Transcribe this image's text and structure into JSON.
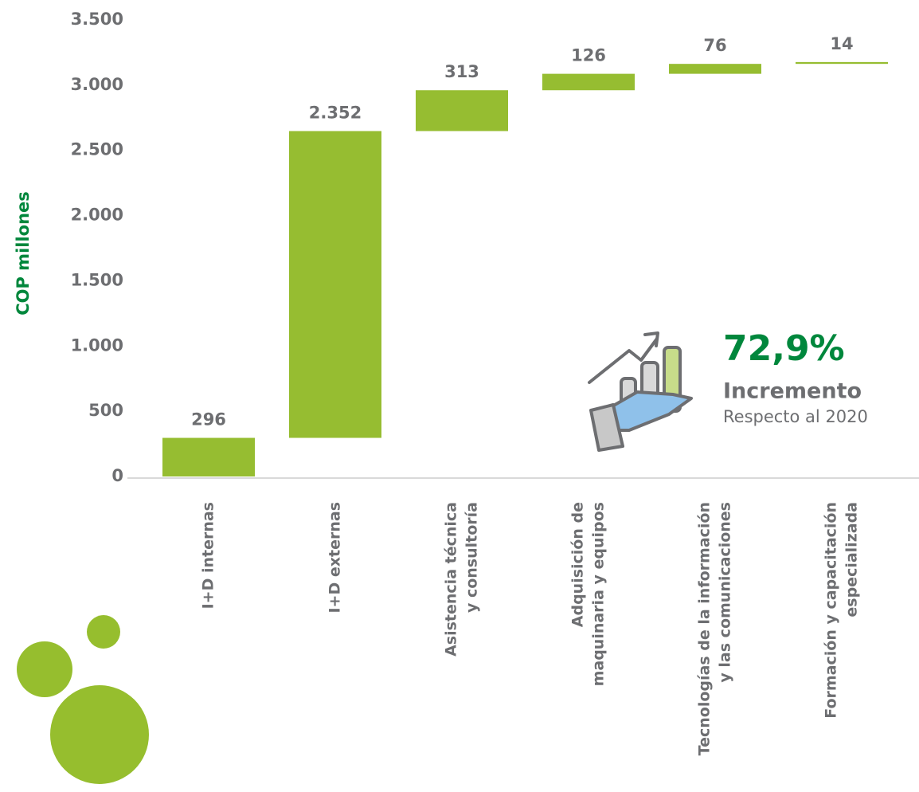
{
  "chart_data": {
    "type": "waterfall",
    "y_label": "COP millones",
    "categories": [
      [
        "I+D internas"
      ],
      [
        "I+D externas"
      ],
      [
        "Asistencia técnica",
        "y consultoría"
      ],
      [
        "Adquisición de",
        "maquinaria y equipos"
      ],
      [
        "Tecnologías de la información",
        "y  las comunicaciones"
      ],
      [
        "Formación y capacitación",
        "especializada"
      ]
    ],
    "values": [
      296,
      2352,
      313,
      126,
      76,
      14
    ],
    "value_labels": [
      "296",
      "2.352",
      "313",
      "126",
      "76",
      "14"
    ],
    "color": "#96bd31",
    "ylim": [
      0,
      3500
    ],
    "yticks": [
      0,
      500,
      {
        "value": 1000,
        "label": "1.000"
      },
      {
        "value": 1500,
        "label": "1.500"
      },
      {
        "value": 2000,
        "label": "2.000"
      },
      {
        "value": 2500,
        "label": "2.500"
      },
      {
        "value": 3000,
        "label": "3.000"
      },
      {
        "value": 3500,
        "label": "3.500"
      }
    ],
    "annotation": {
      "value": "72,9%",
      "title": "Incremento",
      "subtitle": "Respecto al 2020"
    }
  }
}
